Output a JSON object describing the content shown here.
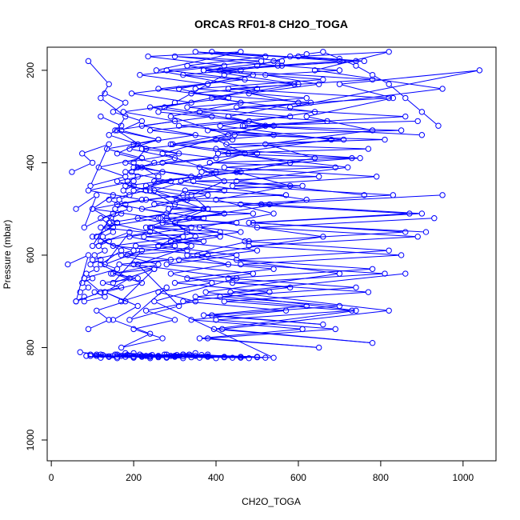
{
  "chart_data": {
    "type": "line",
    "title": "ORCAS RF01-8 CH2O_TOGA",
    "xlabel": "CH2O_TOGA",
    "ylabel": "Pressure (mbar)",
    "xlim": [
      -10,
      1080
    ],
    "ylim": [
      1045,
      150
    ],
    "y_inverted": true,
    "grid": false,
    "marker": "open-circle",
    "series_color": "#0000ff",
    "x_ticks": [
      0,
      200,
      400,
      600,
      800,
      1000
    ],
    "y_ticks": [
      200,
      400,
      600,
      800,
      1000
    ],
    "x_tick_labels": [
      "0",
      "200",
      "400",
      "600",
      "800",
      "1000"
    ],
    "y_tick_labels": [
      "200",
      "400",
      "600",
      "800",
      "1000"
    ],
    "series": [
      {
        "x": [
          90,
          140,
          120,
          180,
          160,
          230,
          200,
          260,
          240,
          300,
          280,
          330,
          260,
          350,
          300,
          380,
          340,
          420,
          360,
          470,
          400,
          520,
          430,
          600,
          480,
          650,
          520,
          700,
          560,
          760,
          600,
          820,
          640,
          950,
          580,
          1040,
          700,
          830,
          620,
          780,
          520,
          640,
          450,
          580,
          400,
          540,
          360,
          480,
          330,
          430,
          290,
          390,
          260,
          350,
          230,
          300,
          200,
          270,
          170,
          240,
          150,
          210,
          130,
          190,
          120,
          170,
          110,
          160,
          100,
          150
        ],
        "y": [
          180,
          230,
          260,
          300,
          330,
          370,
          400,
          430,
          460,
          490,
          520,
          550,
          580,
          560,
          530,
          500,
          470,
          440,
          410,
          380,
          350,
          320,
          300,
          270,
          250,
          230,
          210,
          200,
          190,
          180,
          170,
          160,
          200,
          240,
          280,
          200,
          230,
          260,
          300,
          330,
          360,
          390,
          420,
          450,
          480,
          510,
          540,
          570,
          600,
          620,
          640,
          660,
          680,
          700,
          720,
          740,
          760,
          780,
          800,
          770,
          740,
          710,
          680,
          650,
          620,
          590,
          560,
          530,
          500,
          470
        ]
      },
      {
        "x": [
          60,
          110,
          80,
          150,
          100,
          190,
          130,
          220,
          150,
          250,
          170,
          280,
          190,
          310,
          210,
          340,
          230,
          370,
          250,
          400,
          270,
          430,
          290,
          460,
          310,
          490,
          330,
          520,
          350,
          560,
          370,
          600,
          390,
          640,
          410,
          680,
          430,
          720,
          450,
          760
        ],
        "y": [
          500,
          470,
          540,
          510,
          580,
          550,
          620,
          590,
          660,
          630,
          700,
          670,
          740,
          710,
          620,
          580,
          540,
          500,
          460,
          420,
          380,
          340,
          300,
          270,
          240,
          210,
          190,
          170,
          160,
          180,
          200,
          230,
          260,
          290,
          320,
          350,
          380,
          410,
          440,
          470
        ]
      },
      {
        "x": [
          70,
          120,
          95,
          160,
          110,
          200,
          140,
          240,
          160,
          280,
          180,
          300,
          200,
          320,
          220,
          350,
          240,
          380,
          260,
          420,
          280,
          460,
          300,
          500,
          320,
          540,
          250,
          450,
          200,
          380,
          150,
          320,
          120,
          260,
          100,
          220,
          90,
          200
        ],
        "y": [
          810,
          815,
          818,
          820,
          815,
          812,
          820,
          818,
          815,
          820,
          812,
          818,
          820,
          815,
          818,
          812,
          820,
          815,
          818,
          820,
          815,
          822,
          818,
          820,
          815,
          822,
          700,
          650,
          620,
          600,
          580,
          560,
          540,
          520,
          500,
          480,
          460,
          440
        ]
      },
      {
        "x": [
          40,
          90,
          60,
          120,
          80,
          160,
          100,
          200,
          120,
          240,
          140,
          280,
          160,
          320,
          180,
          360,
          200,
          400,
          220,
          440,
          240,
          480,
          260,
          300,
          340,
          380,
          420,
          460,
          500,
          540,
          580,
          620,
          660,
          700,
          740,
          780,
          820,
          860,
          900,
          940
        ],
        "y": [
          620,
          600,
          700,
          680,
          650,
          630,
          610,
          590,
          570,
          550,
          530,
          510,
          490,
          470,
          450,
          430,
          410,
          390,
          370,
          350,
          330,
          310,
          290,
          270,
          250,
          230,
          210,
          200,
          190,
          180,
          170,
          165,
          160,
          175,
          190,
          210,
          230,
          260,
          290,
          320
        ]
      },
      {
        "x": [
          50,
          100,
          75,
          140,
          95,
          180,
          115,
          220,
          135,
          260,
          155,
          300,
          175,
          340,
          195,
          380,
          215,
          420,
          235,
          460,
          255,
          500,
          275,
          540,
          295,
          580,
          315,
          620,
          335,
          660,
          355,
          700,
          375,
          740,
          395,
          780,
          415,
          820,
          435,
          860
        ],
        "y": [
          420,
          400,
          380,
          360,
          450,
          430,
          410,
          390,
          370,
          350,
          330,
          310,
          290,
          270,
          250,
          230,
          210,
          190,
          170,
          160,
          200,
          240,
          280,
          320,
          360,
          400,
          440,
          480,
          520,
          560,
          600,
          640,
          680,
          720,
          760,
          790,
          760,
          720,
          680,
          640
        ]
      },
      {
        "x": [
          80,
          130,
          105,
          170,
          125,
          210,
          145,
          250,
          165,
          290,
          185,
          330,
          205,
          370,
          225,
          410,
          245,
          450,
          265,
          490,
          285,
          530,
          305,
          570,
          325,
          610,
          345,
          650,
          365,
          690,
          385,
          730,
          405,
          770,
          425,
          810,
          445,
          850,
          465,
          890
        ],
        "y": [
          700,
          690,
          680,
          670,
          660,
          650,
          640,
          630,
          620,
          610,
          600,
          590,
          580,
          570,
          560,
          550,
          540,
          530,
          520,
          510,
          500,
          490,
          480,
          470,
          460,
          450,
          440,
          430,
          420,
          410,
          400,
          390,
          380,
          370,
          360,
          350,
          340,
          330,
          320,
          310
        ]
      },
      {
        "x": [
          90,
          140,
          110,
          180,
          130,
          220,
          150,
          260,
          170,
          300,
          190,
          340,
          210,
          380,
          230,
          420,
          250,
          460,
          270,
          500,
          290,
          540,
          310,
          580,
          330,
          620,
          350,
          660,
          370,
          700,
          390,
          740,
          410,
          780,
          430,
          820,
          450,
          860,
          470,
          900
        ],
        "y": [
          760,
          740,
          720,
          700,
          680,
          660,
          640,
          620,
          600,
          580,
          560,
          540,
          520,
          500,
          480,
          460,
          440,
          420,
          400,
          380,
          360,
          340,
          320,
          300,
          280,
          260,
          240,
          220,
          200,
          180,
          160,
          180,
          200,
          220,
          240,
          260,
          280,
          300,
          320,
          340
        ]
      },
      {
        "x": [
          100,
          150,
          120,
          190,
          140,
          230,
          160,
          270,
          180,
          310,
          200,
          350,
          220,
          390,
          240,
          430,
          260,
          470,
          280,
          510,
          300,
          550,
          320,
          590,
          340,
          630,
          360,
          670,
          380,
          710,
          400,
          750,
          420,
          790,
          440,
          830,
          460,
          870,
          480,
          910
        ],
        "y": [
          560,
          540,
          520,
          500,
          480,
          460,
          440,
          420,
          400,
          380,
          360,
          340,
          320,
          300,
          280,
          260,
          240,
          220,
          200,
          180,
          170,
          190,
          210,
          230,
          250,
          270,
          290,
          310,
          330,
          350,
          370,
          390,
          410,
          430,
          450,
          470,
          490,
          510,
          530,
          550
        ]
      },
      {
        "x": [
          120,
          170,
          140,
          210,
          160,
          250,
          180,
          290,
          200,
          330,
          220,
          370,
          240,
          410,
          260,
          450,
          280,
          490,
          300,
          530,
          320,
          570,
          340,
          610,
          360,
          650,
          380,
          690,
          400,
          730,
          420,
          770,
          440,
          810,
          460,
          850,
          480,
          890,
          500,
          930
        ],
        "y": [
          300,
          320,
          340,
          360,
          380,
          400,
          420,
          440,
          460,
          480,
          500,
          520,
          540,
          560,
          580,
          600,
          620,
          640,
          660,
          680,
          700,
          720,
          740,
          760,
          780,
          800,
          780,
          760,
          740,
          720,
          700,
          680,
          660,
          640,
          620,
          600,
          580,
          560,
          540,
          520
        ]
      },
      {
        "x": [
          130,
          180,
          150,
          220,
          170,
          260,
          190,
          300,
          210,
          340,
          230,
          380,
          250,
          420,
          270,
          460,
          290,
          500,
          310,
          540,
          330,
          580,
          350,
          620,
          370,
          660,
          390,
          700,
          410,
          740,
          430,
          780,
          450,
          820,
          470,
          860,
          490,
          900,
          510,
          950
        ],
        "y": [
          250,
          270,
          290,
          310,
          330,
          350,
          370,
          390,
          410,
          430,
          450,
          470,
          490,
          510,
          530,
          550,
          570,
          590,
          610,
          630,
          650,
          670,
          690,
          710,
          730,
          750,
          730,
          710,
          690,
          670,
          650,
          630,
          610,
          590,
          570,
          550,
          530,
          510,
          490,
          470
        ]
      },
      {
        "x": [
          85,
          120,
          95,
          140,
          110,
          160,
          125,
          180,
          140,
          200,
          155,
          220,
          170,
          240,
          185,
          260,
          200,
          280,
          215,
          300,
          230,
          320,
          245,
          340,
          260,
          360,
          275,
          380,
          290,
          400,
          305,
          420,
          320,
          440,
          335,
          460,
          350,
          480,
          365,
          500,
          380,
          520
        ],
        "y": [
          818,
          822,
          815,
          820,
          818,
          823,
          816,
          820,
          819,
          822,
          815,
          820,
          818,
          823,
          816,
          821,
          819,
          822,
          815,
          820,
          818,
          823,
          816,
          821,
          819,
          822,
          815,
          820,
          818,
          823,
          816,
          821,
          819,
          822,
          815,
          820,
          818,
          823,
          816,
          821,
          819,
          822
        ]
      },
      {
        "x": [
          60,
          80,
          70,
          90,
          75,
          100,
          85,
          110,
          95,
          120,
          105,
          130,
          115,
          140,
          125,
          150,
          135,
          160,
          145,
          170,
          155,
          180,
          165,
          190,
          175,
          200,
          185,
          210,
          195,
          220
        ],
        "y": [
          700,
          690,
          680,
          670,
          660,
          650,
          640,
          630,
          620,
          610,
          600,
          590,
          580,
          570,
          560,
          550,
          540,
          530,
          520,
          510,
          500,
          490,
          480,
          470,
          460,
          450,
          440,
          430,
          420,
          410
        ]
      }
    ]
  }
}
